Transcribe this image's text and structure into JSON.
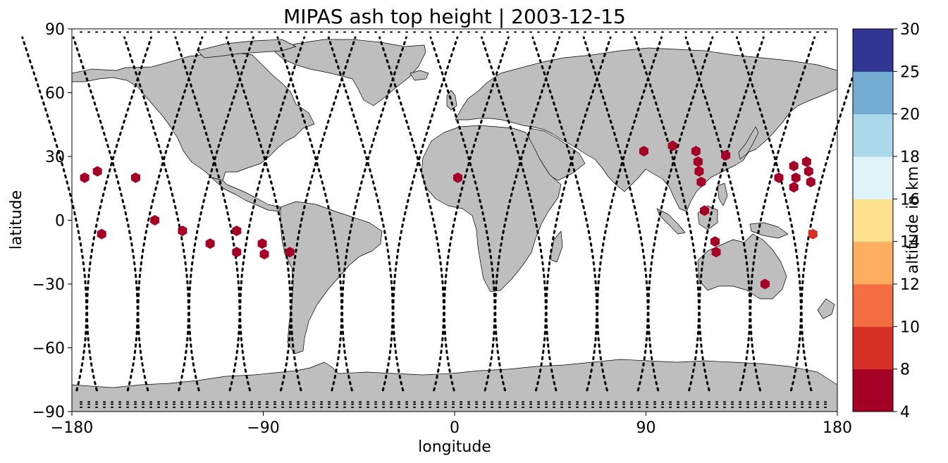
{
  "chart_data": {
    "type": "scatter",
    "title": "MIPAS ash top height | 2003-12-15",
    "xlabel": "longitude",
    "ylabel": "latitude",
    "xlim": [
      -180,
      180
    ],
    "ylim": [
      -90,
      90
    ],
    "xticks": [
      -180,
      -90,
      0,
      90,
      180
    ],
    "yticks": [
      90,
      60,
      30,
      0,
      -30,
      -60,
      -90
    ],
    "xtick_labels": [
      "−180",
      "−90",
      "0",
      "90",
      "180"
    ],
    "ytick_labels": [
      "90",
      "60",
      "30",
      "0",
      "−30",
      "−60",
      "−90"
    ],
    "grid": false,
    "basemap": "world coastlines, land filled gray",
    "orbit_tracks": "dotted black satellite measurement tracks",
    "colorbar": {
      "label": "altitude in km",
      "tick_labels": [
        "4",
        "8",
        "10",
        "12",
        "14",
        "16",
        "18",
        "20",
        "25",
        "30"
      ],
      "bins": [
        {
          "from": 4,
          "to": 8,
          "color": "#a50026"
        },
        {
          "from": 8,
          "to": 10,
          "color": "#d73027"
        },
        {
          "from": 10,
          "to": 12,
          "color": "#f46d43"
        },
        {
          "from": 12,
          "to": 14,
          "color": "#fdae61"
        },
        {
          "from": 14,
          "to": 16,
          "color": "#fee090"
        },
        {
          "from": 16,
          "to": 18,
          "color": "#e0f3f8"
        },
        {
          "from": 18,
          "to": 20,
          "color": "#abd9e9"
        },
        {
          "from": 20,
          "to": 25,
          "color": "#74add1"
        },
        {
          "from": 25,
          "to": 30,
          "color": "#313695"
        }
      ]
    },
    "points": [
      {
        "lon": -174,
        "lat": 20,
        "alt": 6
      },
      {
        "lon": -168,
        "lat": 23,
        "alt": 6
      },
      {
        "lon": -166,
        "lat": -6.5,
        "alt": 6
      },
      {
        "lon": -150,
        "lat": 20,
        "alt": 6
      },
      {
        "lon": -141,
        "lat": 0,
        "alt": 6
      },
      {
        "lon": -128,
        "lat": -5,
        "alt": 6
      },
      {
        "lon": -115,
        "lat": -11,
        "alt": 6
      },
      {
        "lon": -102.5,
        "lat": -5,
        "alt": 6
      },
      {
        "lon": -102.5,
        "lat": -15,
        "alt": 6
      },
      {
        "lon": -90.5,
        "lat": -11,
        "alt": 6
      },
      {
        "lon": -89.5,
        "lat": -16,
        "alt": 6
      },
      {
        "lon": -77.5,
        "lat": -15,
        "alt": 6
      },
      {
        "lon": 1.5,
        "lat": 20,
        "alt": 6
      },
      {
        "lon": 89,
        "lat": 32.5,
        "alt": 6
      },
      {
        "lon": 102.5,
        "lat": 35,
        "alt": 6
      },
      {
        "lon": 113.5,
        "lat": 32.5,
        "alt": 6
      },
      {
        "lon": 114.5,
        "lat": 27.5,
        "alt": 6
      },
      {
        "lon": 115,
        "lat": 23,
        "alt": 6
      },
      {
        "lon": 116,
        "lat": 18,
        "alt": 6
      },
      {
        "lon": 117.5,
        "lat": 4.5,
        "alt": 6
      },
      {
        "lon": 122.5,
        "lat": -10,
        "alt": 6
      },
      {
        "lon": 123,
        "lat": -15,
        "alt": 6
      },
      {
        "lon": 127.5,
        "lat": 30.5,
        "alt": 6
      },
      {
        "lon": 146,
        "lat": -30,
        "alt": 6
      },
      {
        "lon": 152.5,
        "lat": 20,
        "alt": 6
      },
      {
        "lon": 159.5,
        "lat": 25.5,
        "alt": 6
      },
      {
        "lon": 160.5,
        "lat": 20,
        "alt": 6
      },
      {
        "lon": 159.5,
        "lat": 15.5,
        "alt": 6
      },
      {
        "lon": 165.5,
        "lat": 27.5,
        "alt": 6
      },
      {
        "lon": 166.5,
        "lat": 23,
        "alt": 6
      },
      {
        "lon": 167.5,
        "lat": 18,
        "alt": 6
      },
      {
        "lon": 168.5,
        "lat": -6.5,
        "alt": 9
      }
    ]
  }
}
